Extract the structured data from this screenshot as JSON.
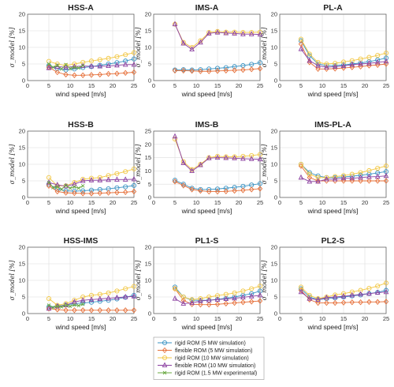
{
  "colors": {
    "rigid5": "#3a93c3",
    "flex5": "#e6703a",
    "rigid10": "#f2c744",
    "flex10": "#8b3fa0",
    "exp15": "#6aa842",
    "grid": "#dedede",
    "axis": "#555555"
  },
  "legend": [
    {
      "key": "rigid5",
      "label": "rigid ROM (5 MW simulation)",
      "marker": "circle"
    },
    {
      "key": "flex5",
      "label": "flexible ROM (5 MW simulation)",
      "marker": "diamond"
    },
    {
      "key": "rigid10",
      "label": "rigid ROM (10 MW simulation)",
      "marker": "circle"
    },
    {
      "key": "flex10",
      "label": "flexible ROM (10 MW simulation)",
      "marker": "triangle"
    },
    {
      "key": "exp15",
      "label": "rigid ROM (1.5 MW experimental)",
      "marker": "x"
    }
  ],
  "chart_data": [
    {
      "type": "line",
      "title": "HSS-A",
      "xlabel": "wind speed [m/s]",
      "ylabel": "σ_model [%]",
      "xlim": [
        0,
        25
      ],
      "ylim": [
        0,
        20
      ],
      "xticks": [
        0,
        5,
        10,
        15,
        20,
        25
      ],
      "yticks": [
        0,
        5,
        10,
        15,
        20
      ],
      "x": [
        5,
        7,
        9,
        11,
        13,
        15,
        17,
        19,
        21,
        23,
        25
      ],
      "series": [
        {
          "key": "rigid5",
          "values": [
            4.5,
            3.6,
            3.2,
            3.5,
            3.9,
            4.2,
            4.6,
            5.0,
            5.4,
            5.9,
            6.5
          ]
        },
        {
          "key": "flex5",
          "values": [
            4.0,
            2.5,
            1.8,
            1.6,
            1.6,
            1.7,
            1.8,
            2.0,
            2.1,
            2.3,
            2.5
          ]
        },
        {
          "key": "rigid10",
          "values": [
            5.8,
            5.0,
            4.5,
            5.0,
            5.5,
            5.9,
            6.3,
            6.7,
            7.2,
            7.8,
            8.4
          ]
        },
        {
          "key": "flex10",
          "values": [
            3.8,
            4.2,
            4.0,
            4.2,
            4.4,
            4.3,
            4.3,
            4.4,
            4.6,
            4.8,
            4.8
          ]
        },
        {
          "key": "exp15",
          "x": [
            5,
            6,
            7,
            8,
            9,
            10,
            11,
            12,
            13
          ],
          "values": [
            5.0,
            4.0,
            4.6,
            3.5,
            4.8,
            3.6,
            4.0,
            3.8,
            4.5
          ]
        }
      ]
    },
    {
      "type": "line",
      "title": "IMS-A",
      "xlabel": "wind speed [m/s]",
      "ylabel": "σ_model [%]",
      "xlim": [
        0,
        25
      ],
      "ylim": [
        0,
        20
      ],
      "xticks": [
        0,
        5,
        10,
        15,
        20,
        25
      ],
      "yticks": [
        0,
        5,
        10,
        15,
        20
      ],
      "x": [
        5,
        7,
        9,
        11,
        13,
        15,
        17,
        19,
        21,
        23,
        25
      ],
      "series": [
        {
          "key": "rigid5",
          "values": [
            3.2,
            3.3,
            3.2,
            3.3,
            3.5,
            3.7,
            3.9,
            4.2,
            4.5,
            4.9,
            5.4
          ]
        },
        {
          "key": "flex5",
          "values": [
            3.0,
            3.0,
            2.9,
            2.8,
            2.8,
            2.9,
            3.0,
            3.1,
            3.2,
            3.4,
            3.6
          ]
        },
        {
          "key": "rigid10",
          "values": [
            17.0,
            11.5,
            10.0,
            12.0,
            14.5,
            14.8,
            14.6,
            14.6,
            14.5,
            14.5,
            14.6
          ]
        },
        {
          "key": "flex10",
          "values": [
            17.0,
            11.2,
            9.4,
            11.5,
            14.2,
            14.5,
            14.3,
            14.2,
            14.0,
            14.0,
            13.9
          ]
        }
      ]
    },
    {
      "type": "line",
      "title": "PL-A",
      "xlabel": "wind speed [m/s]",
      "ylabel": "σ_model [%]",
      "xlim": [
        0,
        25
      ],
      "ylim": [
        0,
        20
      ],
      "xticks": [
        0,
        5,
        10,
        15,
        20,
        25
      ],
      "yticks": [
        0,
        5,
        10,
        15,
        20
      ],
      "x": [
        5,
        7,
        9,
        11,
        13,
        15,
        17,
        19,
        21,
        23,
        25
      ],
      "series": [
        {
          "key": "rigid5",
          "values": [
            12.0,
            7.5,
            5.0,
            4.5,
            4.5,
            4.7,
            5.0,
            5.3,
            5.7,
            6.2,
            6.8
          ]
        },
        {
          "key": "flex5",
          "values": [
            11.0,
            5.5,
            3.5,
            3.5,
            3.6,
            3.8,
            4.0,
            4.2,
            4.5,
            4.7,
            5.0
          ]
        },
        {
          "key": "rigid10",
          "values": [
            12.5,
            8.0,
            5.5,
            5.0,
            5.2,
            5.6,
            6.0,
            6.5,
            7.0,
            7.6,
            8.3
          ]
        },
        {
          "key": "flex10",
          "values": [
            9.5,
            6.0,
            4.5,
            4.0,
            4.2,
            4.4,
            4.8,
            5.0,
            5.2,
            5.5,
            5.8
          ]
        }
      ]
    },
    {
      "type": "line",
      "title": "HSS-B",
      "xlabel": "wind speed [m/s]",
      "ylabel": "σ_model [%]",
      "xlim": [
        0,
        25
      ],
      "ylim": [
        0,
        20
      ],
      "xticks": [
        0,
        5,
        10,
        15,
        20,
        25
      ],
      "yticks": [
        0,
        5,
        10,
        15,
        20
      ],
      "x": [
        5,
        7,
        9,
        11,
        13,
        15,
        17,
        19,
        21,
        23,
        25
      ],
      "series": [
        {
          "key": "rigid5",
          "values": [
            4.0,
            2.5,
            2.0,
            1.9,
            2.0,
            2.2,
            2.4,
            2.6,
            2.9,
            3.2,
            3.6
          ]
        },
        {
          "key": "flex5",
          "values": [
            3.5,
            1.8,
            1.4,
            1.3,
            1.2,
            1.2,
            1.3,
            1.4,
            1.5,
            1.6,
            1.8
          ]
        },
        {
          "key": "rigid10",
          "values": [
            6.0,
            3.5,
            3.5,
            4.5,
            5.5,
            5.8,
            6.0,
            6.6,
            7.2,
            7.8,
            8.6
          ]
        },
        {
          "key": "flex10",
          "values": [
            4.5,
            3.8,
            3.4,
            4.0,
            5.0,
            5.2,
            5.2,
            5.3,
            5.4,
            5.4,
            5.5
          ]
        },
        {
          "key": "exp15",
          "x": [
            5,
            6,
            7,
            8,
            9,
            10,
            11,
            12,
            13
          ],
          "values": [
            4.5,
            3.0,
            3.2,
            2.5,
            3.6,
            2.8,
            3.2,
            2.8,
            3.5
          ]
        }
      ]
    },
    {
      "type": "line",
      "title": "IMS-B",
      "xlabel": "wind speed [m/s]",
      "ylabel": "σ_model [%]",
      "xlim": [
        0,
        25
      ],
      "ylim": [
        0,
        25
      ],
      "xticks": [
        0,
        5,
        10,
        15,
        20,
        25
      ],
      "yticks": [
        0,
        5,
        10,
        15,
        20,
        25
      ],
      "x": [
        5,
        7,
        9,
        11,
        13,
        15,
        17,
        19,
        21,
        23,
        25
      ],
      "series": [
        {
          "key": "rigid5",
          "values": [
            6.5,
            5.0,
            3.5,
            3.0,
            3.0,
            3.2,
            3.5,
            3.8,
            4.2,
            4.7,
            5.2
          ]
        },
        {
          "key": "flex5",
          "values": [
            6.0,
            4.5,
            3.0,
            2.5,
            2.2,
            2.2,
            2.3,
            2.5,
            2.7,
            3.0,
            3.3
          ]
        },
        {
          "key": "rigid10",
          "values": [
            22.0,
            13.5,
            10.5,
            12.5,
            15.0,
            15.5,
            15.3,
            15.3,
            15.5,
            15.8,
            16.2
          ]
        },
        {
          "key": "flex10",
          "values": [
            23.0,
            13.0,
            10.0,
            12.2,
            14.8,
            15.0,
            14.9,
            14.8,
            14.6,
            14.5,
            14.4
          ]
        }
      ]
    },
    {
      "type": "line",
      "title": "IMS-PL-A",
      "xlabel": "wind speed [m/s]",
      "ylabel": "σ_model [%]",
      "xlim": [
        0,
        25
      ],
      "ylim": [
        0,
        20
      ],
      "xticks": [
        0,
        5,
        10,
        15,
        20,
        25
      ],
      "yticks": [
        0,
        5,
        10,
        15,
        20
      ],
      "x": [
        5,
        7,
        9,
        11,
        13,
        15,
        17,
        19,
        21,
        23,
        25
      ],
      "series": [
        {
          "key": "rigid5",
          "values": [
            10.0,
            7.5,
            6.5,
            6.0,
            6.0,
            6.2,
            6.4,
            6.7,
            7.0,
            7.4,
            7.8
          ]
        },
        {
          "key": "flex5",
          "values": [
            9.5,
            6.0,
            5.0,
            5.0,
            5.0,
            5.0,
            5.0,
            5.0,
            5.0,
            5.0,
            5.0
          ]
        },
        {
          "key": "rigid10",
          "values": [
            10.0,
            7.0,
            6.0,
            6.0,
            6.3,
            6.6,
            7.0,
            7.5,
            8.1,
            8.8,
            9.5
          ]
        },
        {
          "key": "flex10",
          "values": [
            6.0,
            4.8,
            4.8,
            5.5,
            5.5,
            5.8,
            5.8,
            6.0,
            6.2,
            6.3,
            6.5
          ]
        }
      ]
    },
    {
      "type": "line",
      "title": "HSS-IMS",
      "xlabel": "wind speed [m/s]",
      "ylabel": "σ_model [%]",
      "xlim": [
        0,
        25
      ],
      "ylim": [
        0,
        20
      ],
      "xticks": [
        0,
        5,
        10,
        15,
        20,
        25
      ],
      "yticks": [
        0,
        5,
        10,
        15,
        20
      ],
      "x": [
        5,
        7,
        9,
        11,
        13,
        15,
        17,
        19,
        21,
        23,
        25
      ],
      "series": [
        {
          "key": "rigid5",
          "values": [
            2.0,
            2.2,
            2.6,
            3.0,
            3.2,
            3.4,
            3.7,
            4.0,
            4.4,
            4.9,
            5.5
          ]
        },
        {
          "key": "flex5",
          "values": [
            1.5,
            1.2,
            1.0,
            1.0,
            1.0,
            1.0,
            1.0,
            1.0,
            1.0,
            1.0,
            1.0
          ]
        },
        {
          "key": "rigid10",
          "values": [
            4.5,
            2.5,
            3.0,
            4.0,
            5.0,
            5.5,
            5.8,
            6.2,
            6.8,
            7.5,
            8.2
          ]
        },
        {
          "key": "flex10",
          "values": [
            1.5,
            2.2,
            2.5,
            3.5,
            4.0,
            4.2,
            4.4,
            4.6,
            4.8,
            5.0,
            5.2
          ]
        },
        {
          "key": "exp15",
          "x": [
            5,
            6,
            7,
            8,
            9,
            10,
            11,
            12,
            13
          ],
          "values": [
            2.5,
            1.8,
            2.2,
            2.0,
            2.5,
            2.2,
            2.6,
            2.4,
            2.8
          ]
        }
      ]
    },
    {
      "type": "line",
      "title": "PL1-S",
      "xlabel": "wind speed [m/s]",
      "ylabel": "σ_model [%]",
      "xlim": [
        0,
        25
      ],
      "ylim": [
        0,
        20
      ],
      "xticks": [
        0,
        5,
        10,
        15,
        20,
        25
      ],
      "yticks": [
        0,
        5,
        10,
        15,
        20
      ],
      "x": [
        5,
        7,
        9,
        11,
        13,
        15,
        17,
        19,
        21,
        23,
        25
      ],
      "series": [
        {
          "key": "rigid5",
          "values": [
            8.0,
            5.0,
            4.0,
            4.0,
            4.0,
            4.3,
            4.6,
            5.0,
            5.5,
            6.0,
            6.8
          ]
        },
        {
          "key": "flex5",
          "values": [
            7.5,
            4.0,
            2.8,
            2.7,
            2.7,
            2.8,
            3.0,
            3.2,
            3.4,
            3.6,
            3.8
          ]
        },
        {
          "key": "rigid10",
          "values": [
            7.5,
            5.0,
            4.2,
            4.5,
            5.0,
            5.4,
            5.8,
            6.2,
            6.8,
            7.5,
            8.3
          ]
        },
        {
          "key": "flex10",
          "values": [
            4.5,
            3.0,
            3.2,
            3.8,
            4.0,
            4.2,
            4.4,
            4.6,
            4.9,
            5.2,
            5.5
          ]
        }
      ]
    },
    {
      "type": "line",
      "title": "PL2-S",
      "xlabel": "wind speed [m/s]",
      "ylabel": "σ_model [%]",
      "xlim": [
        0,
        25
      ],
      "ylim": [
        0,
        20
      ],
      "xticks": [
        0,
        5,
        10,
        15,
        20,
        25
      ],
      "yticks": [
        0,
        5,
        10,
        15,
        20
      ],
      "x": [
        5,
        7,
        9,
        11,
        13,
        15,
        17,
        19,
        21,
        23,
        25
      ],
      "series": [
        {
          "key": "rigid5",
          "values": [
            7.5,
            5.0,
            4.2,
            4.5,
            4.7,
            5.0,
            5.3,
            5.6,
            6.0,
            6.4,
            7.0
          ]
        },
        {
          "key": "flex5",
          "values": [
            7.0,
            4.2,
            3.2,
            3.2,
            3.2,
            3.3,
            3.4,
            3.4,
            3.5,
            3.5,
            3.6
          ]
        },
        {
          "key": "rigid10",
          "values": [
            8.0,
            5.5,
            4.5,
            5.0,
            5.6,
            6.0,
            6.5,
            7.0,
            7.6,
            8.3,
            9.2
          ]
        },
        {
          "key": "flex10",
          "values": [
            6.5,
            4.5,
            4.2,
            4.8,
            5.0,
            5.2,
            5.5,
            5.8,
            6.0,
            6.3,
            6.5
          ]
        }
      ]
    }
  ]
}
